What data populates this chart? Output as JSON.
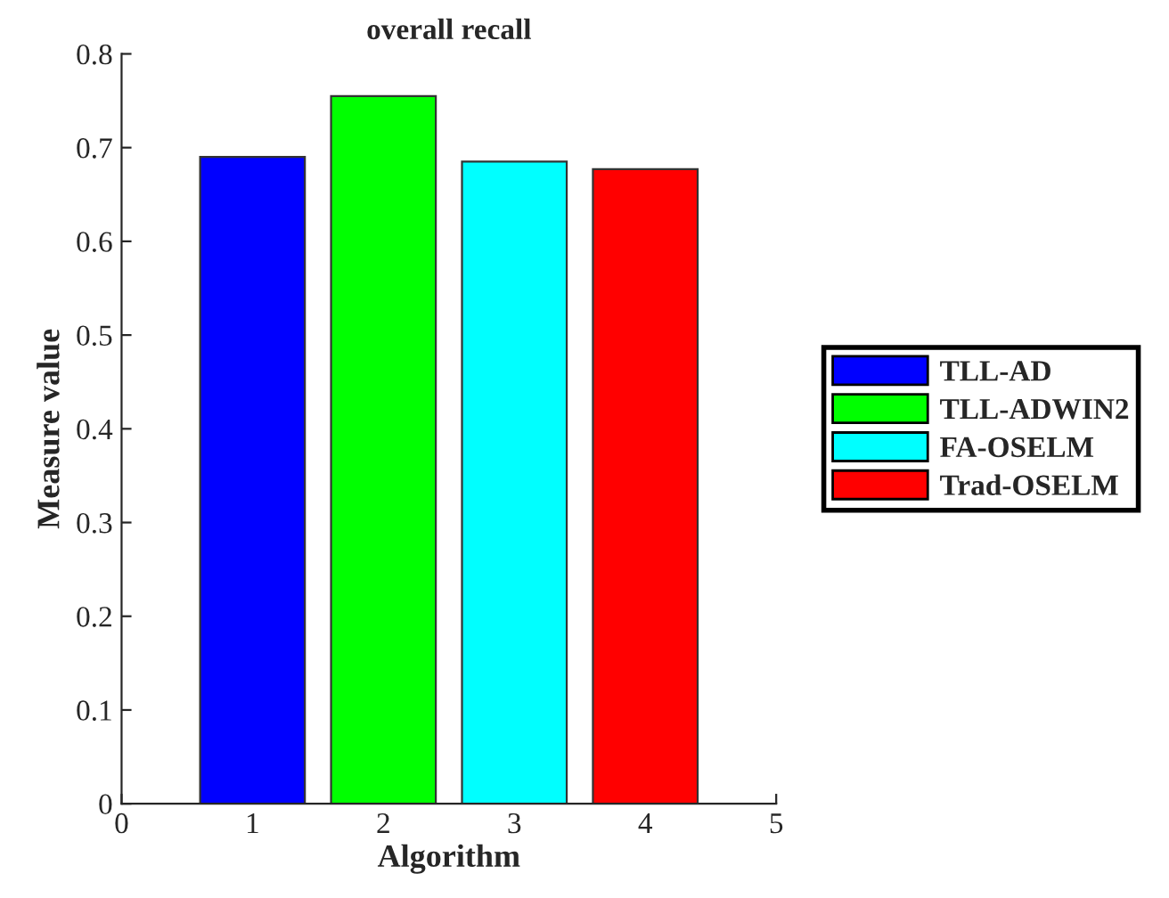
{
  "chart_data": {
    "type": "bar",
    "title": "overall recall",
    "xlabel": "Algorithm",
    "ylabel": "Measure value",
    "series": [
      {
        "name": "TLL-AD",
        "color": "#0000ff",
        "x": [
          1
        ],
        "values": [
          0.69
        ]
      },
      {
        "name": "TLL-ADWIN2",
        "color": "#00ff00",
        "x": [
          2
        ],
        "values": [
          0.755
        ]
      },
      {
        "name": "FA-OSELM",
        "color": "#00ffff",
        "x": [
          3
        ],
        "values": [
          0.685
        ]
      },
      {
        "name": "Trad-OSELM",
        "color": "#ff0000",
        "x": [
          4
        ],
        "values": [
          0.677
        ]
      }
    ],
    "xlim": [
      0,
      5
    ],
    "xticks": [
      0,
      1,
      2,
      3,
      4,
      5
    ],
    "ylim": [
      0,
      0.8
    ],
    "yticks": [
      0,
      0.1,
      0.2,
      0.3,
      0.4,
      0.5,
      0.6,
      0.7,
      0.8
    ],
    "legend": "right",
    "grid": false
  }
}
